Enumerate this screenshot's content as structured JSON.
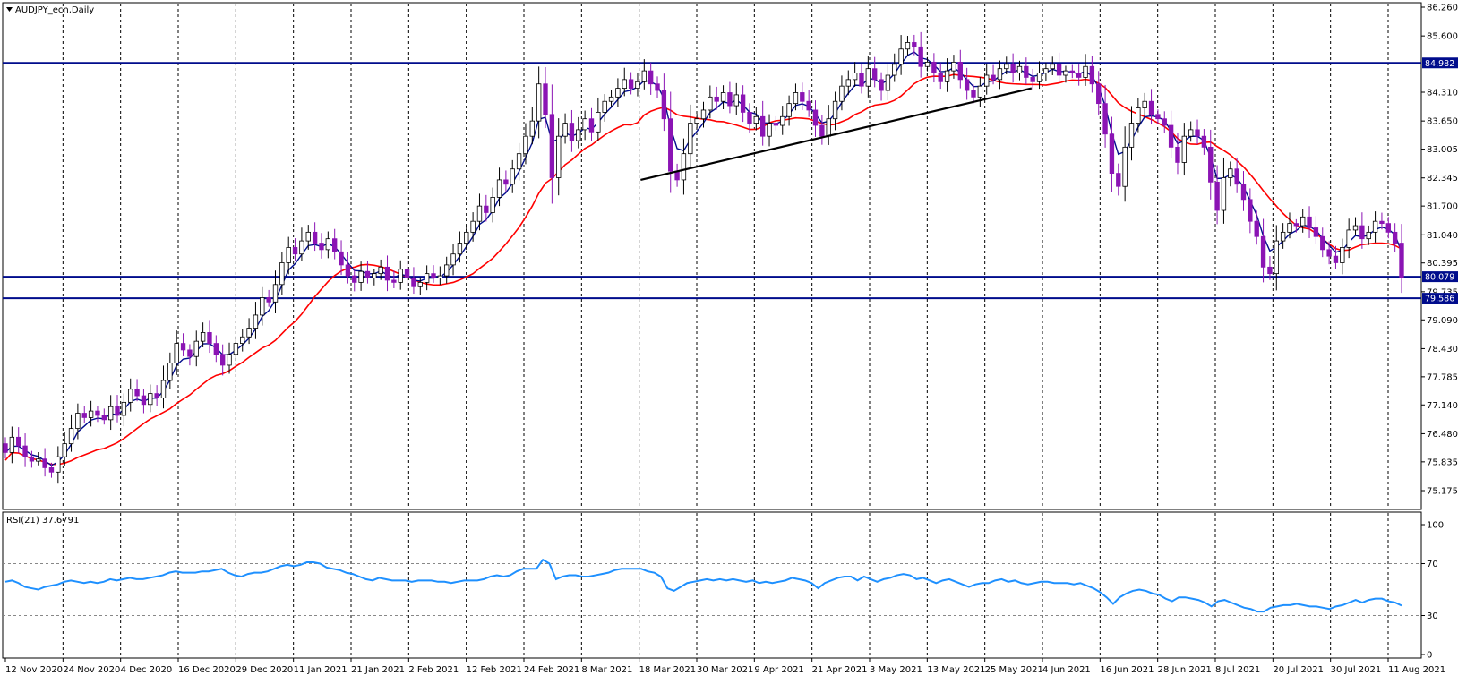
{
  "window": {
    "title": "AUDJPY_ecn,Daily"
  },
  "rsi_title": "RSI(21) 37.6791",
  "chart_data": [
    {
      "type": "candlestick",
      "symbol": "AUDJPY_ecn",
      "timeframe": "Daily",
      "ylim": [
        75.175,
        86.26
      ],
      "y_ticks": [
        "86.260",
        "85.600",
        "84.310",
        "83.650",
        "83.005",
        "82.345",
        "81.700",
        "81.040",
        "80.395",
        "79.735",
        "79.090",
        "78.430",
        "77.785",
        "77.140",
        "76.480",
        "75.835",
        "75.175"
      ],
      "x_labels": [
        "12 Nov 2020",
        "24 Nov 2020",
        "4 Dec 2020",
        "16 Dec 2020",
        "29 Dec 2020",
        "11 Jan 2021",
        "21 Jan 2021",
        "2 Feb 2021",
        "12 Feb 2021",
        "24 Feb 2021",
        "8 Mar 2021",
        "18 Mar 2021",
        "30 Mar 2021",
        "9 Apr 2021",
        "21 Apr 2021",
        "3 May 2021",
        "13 May 2021",
        "25 May 2021",
        "4 Jun 2021",
        "16 Jun 2021",
        "28 Jun 2021",
        "8 Jul 2021",
        "20 Jul 2021",
        "30 Jul 2021",
        "11 Aug 2021"
      ],
      "price_levels": [
        {
          "value": 84.982,
          "label": "84.982"
        },
        {
          "value": 80.079,
          "label": "80.079"
        },
        {
          "value": 79.586,
          "label": "79.586"
        }
      ],
      "trendlines": [
        {
          "from": [
            "19 Mar 2021",
            82.3
          ],
          "to": [
            "10 Jun 2021",
            84.4
          ]
        }
      ],
      "closes": [
        76.05,
        76.4,
        76.2,
        75.95,
        75.85,
        75.9,
        75.7,
        75.6,
        75.95,
        76.25,
        76.6,
        76.95,
        76.85,
        77.0,
        76.9,
        76.8,
        77.1,
        76.9,
        77.2,
        77.5,
        77.35,
        77.15,
        77.4,
        77.3,
        77.7,
        78.1,
        78.55,
        78.4,
        78.25,
        78.6,
        78.8,
        78.55,
        78.3,
        78.05,
        78.3,
        78.55,
        78.7,
        78.9,
        79.2,
        79.6,
        79.5,
        79.9,
        80.4,
        80.75,
        80.6,
        80.9,
        81.1,
        80.85,
        80.7,
        80.95,
        80.65,
        80.35,
        80.1,
        79.95,
        80.2,
        80.05,
        80.15,
        80.3,
        80.0,
        79.95,
        80.25,
        80.05,
        79.85,
        79.95,
        80.15,
        80.05,
        80.1,
        80.35,
        80.6,
        80.85,
        81.1,
        81.35,
        81.7,
        81.55,
        81.9,
        82.3,
        82.2,
        82.55,
        82.9,
        83.3,
        83.65,
        84.5,
        83.8,
        82.35,
        83.3,
        83.6,
        83.2,
        83.45,
        83.7,
        83.4,
        83.85,
        84.1,
        84.2,
        84.4,
        84.6,
        84.4,
        84.55,
        84.8,
        84.5,
        84.35,
        83.7,
        82.5,
        82.3,
        82.9,
        83.6,
        83.7,
        83.9,
        84.2,
        84.1,
        84.3,
        84.0,
        84.25,
        83.85,
        83.6,
        83.75,
        83.3,
        83.6,
        83.55,
        83.75,
        84.05,
        84.3,
        84.1,
        83.9,
        83.55,
        83.3,
        83.7,
        84.1,
        84.45,
        84.6,
        84.75,
        84.45,
        84.85,
        84.6,
        84.35,
        84.7,
        84.95,
        85.3,
        85.45,
        85.35,
        84.9,
        85.0,
        84.75,
        84.55,
        84.8,
        85.0,
        84.6,
        84.35,
        84.2,
        84.45,
        84.7,
        84.6,
        84.85,
        84.95,
        84.75,
        84.9,
        84.65,
        84.55,
        84.75,
        84.85,
        84.95,
        84.7,
        84.8,
        84.75,
        84.65,
        84.9,
        84.5,
        84.05,
        83.35,
        82.45,
        82.15,
        83.05,
        83.6,
        83.95,
        84.1,
        83.8,
        83.7,
        83.55,
        83.05,
        82.7,
        83.3,
        83.45,
        83.3,
        83.05,
        82.25,
        81.6,
        82.35,
        82.55,
        82.2,
        81.85,
        81.35,
        81.0,
        80.3,
        80.15,
        80.9,
        81.1,
        81.3,
        81.25,
        81.45,
        81.2,
        81.0,
        80.7,
        80.55,
        80.4,
        80.75,
        81.15,
        81.25,
        80.95,
        81.1,
        81.35,
        81.3,
        81.1,
        80.85,
        80.05
      ]
    },
    {
      "type": "line",
      "name": "RSI(21)",
      "ylim": [
        0,
        100
      ],
      "y_ticks": [
        "100",
        "70",
        "30",
        "0"
      ],
      "levels": [
        70,
        30
      ],
      "values": [
        56,
        57,
        55,
        52,
        51,
        50,
        52,
        53,
        54,
        56,
        57,
        56,
        55,
        56,
        55,
        56,
        58,
        57,
        58,
        59,
        58,
        58,
        59,
        60,
        61,
        63,
        64,
        63,
        63,
        63,
        64,
        64,
        65,
        66,
        63,
        61,
        60,
        62,
        63,
        63,
        64,
        66,
        68,
        69,
        68,
        69,
        71,
        71,
        70,
        67,
        66,
        65,
        63,
        62,
        60,
        58,
        57,
        59,
        58,
        57,
        57,
        57,
        56,
        57,
        57,
        57,
        56,
        56,
        55,
        56,
        57,
        57,
        57,
        58,
        60,
        61,
        60,
        61,
        64,
        66,
        66,
        66,
        73,
        70,
        58,
        60,
        61,
        61,
        60,
        60,
        61,
        62,
        63,
        65,
        66,
        66,
        66,
        66,
        64,
        63,
        60,
        51,
        49,
        52,
        55,
        56,
        57,
        58,
        57,
        58,
        57,
        58,
        57,
        56,
        57,
        55,
        56,
        55,
        56,
        57,
        59,
        58,
        57,
        55,
        51,
        55,
        57,
        59,
        60,
        60,
        57,
        60,
        58,
        56,
        58,
        59,
        61,
        62,
        61,
        58,
        59,
        57,
        55,
        57,
        58,
        56,
        54,
        52,
        54,
        55,
        55,
        57,
        58,
        56,
        57,
        55,
        54,
        55,
        56,
        56,
        55,
        55,
        55,
        54,
        55,
        53,
        51,
        48,
        44,
        39,
        44,
        47,
        49,
        50,
        49,
        47,
        46,
        43,
        41,
        44,
        44,
        43,
        42,
        40,
        37,
        41,
        42,
        40,
        38,
        36,
        35,
        33,
        33,
        36,
        37,
        38,
        38,
        39,
        38,
        37,
        37,
        36,
        35,
        37,
        38,
        40,
        42,
        40,
        42,
        43,
        43,
        41,
        40,
        37.68
      ]
    }
  ],
  "colors": {
    "background": "#FFFFFF",
    "bull_candle": "#FFFFFF",
    "bear_candle": "#8B14B4",
    "candle_outline": "#000000",
    "ma_fast": "#000C8C",
    "ma_slow": "#FF0000",
    "level_line": "#000C8C",
    "trendline": "#000000",
    "rsi_line": "#1E90FF",
    "grid": "#888888",
    "price_label_bg": "#000C8C"
  }
}
